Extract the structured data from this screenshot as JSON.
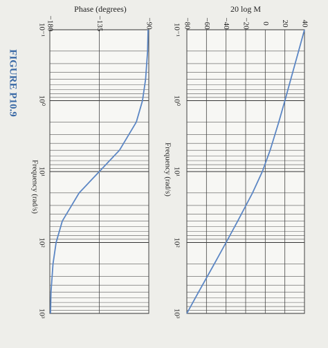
{
  "figure_label": "FIGURE P10.9",
  "chart_data": [
    {
      "type": "line",
      "ylabel": "20 log M",
      "xlabel": "Frequency (rad/s)",
      "xscale": "log",
      "minor_grid": true,
      "x": [
        0.1,
        0.2,
        0.5,
        1,
        2,
        5,
        10,
        20,
        50,
        100,
        200,
        500,
        1000
      ],
      "series": [
        {
          "color": "#5b86c4",
          "values": [
            40,
            34,
            26,
            20,
            13.8,
            5,
            -3,
            -13,
            -28.1,
            -40,
            -52,
            -68,
            -80
          ]
        }
      ],
      "xlim": [
        0.1,
        1000
      ],
      "xticks": [
        {
          "value": 0.1,
          "label": "10⁻¹"
        },
        {
          "value": 1,
          "label": "10⁰"
        },
        {
          "value": 10,
          "label": "10¹"
        },
        {
          "value": 100,
          "label": "10²"
        },
        {
          "value": 1000,
          "label": "10³"
        }
      ],
      "ylim": [
        -80,
        40
      ],
      "yticks": [
        {
          "value": -80,
          "label": "−80"
        },
        {
          "value": -60,
          "label": "−60"
        },
        {
          "value": -40,
          "label": "−40"
        },
        {
          "value": -20,
          "label": "−20"
        },
        0,
        20,
        40
      ],
      "grid": true
    },
    {
      "type": "line",
      "ylabel": "Phase (degrees)",
      "xlabel": "Frequency (rad/s)",
      "xscale": "log",
      "minor_grid": true,
      "x": [
        0.1,
        0.2,
        0.5,
        1,
        2,
        5,
        10,
        20,
        50,
        100,
        200,
        500,
        1000
      ],
      "series": [
        {
          "color": "#5b86c4",
          "values": [
            -90.6,
            -91.1,
            -92.9,
            -95.7,
            -101.3,
            -116.6,
            -135,
            -153.4,
            -168.7,
            -174.3,
            -177.1,
            -178.9,
            -179.4
          ]
        }
      ],
      "xlim": [
        0.1,
        1000
      ],
      "xticks": [
        {
          "value": 0.1,
          "label": "10⁻¹"
        },
        {
          "value": 1,
          "label": "10⁰"
        },
        {
          "value": 10,
          "label": "10¹"
        },
        {
          "value": 100,
          "label": "10²"
        },
        {
          "value": 1000,
          "label": "10³"
        }
      ],
      "ylim": [
        -180,
        -90
      ],
      "yticks": [
        {
          "value": -180,
          "label": "−180"
        },
        {
          "value": -135,
          "label": "−135"
        },
        {
          "value": -90,
          "label": "−90"
        }
      ],
      "grid": true
    }
  ]
}
